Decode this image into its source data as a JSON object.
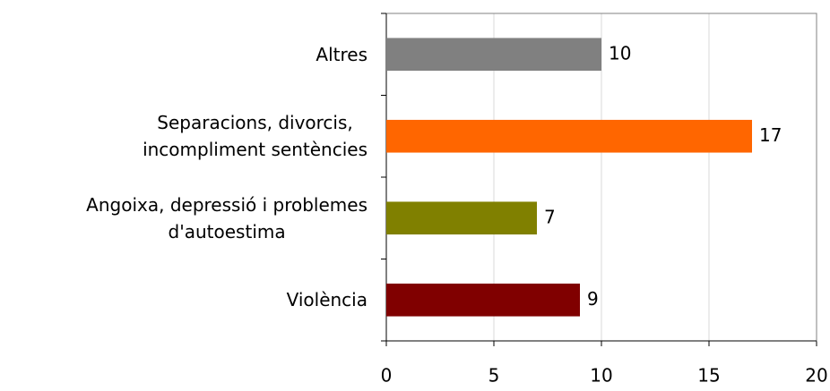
{
  "chart_data": {
    "type": "barh",
    "categories": [
      "Altres",
      "Separacions, divorcis,\nincompliment sentències",
      "Angoixa, depressió i problemes\nd'autoestima",
      "Violència"
    ],
    "values": [
      10,
      17,
      7,
      9
    ],
    "colors": [
      "#808080",
      "#ff6600",
      "#808000",
      "#800000"
    ],
    "xlim": [
      0,
      20
    ],
    "xticks": [
      0,
      5,
      10,
      15,
      20
    ],
    "grid": true
  }
}
